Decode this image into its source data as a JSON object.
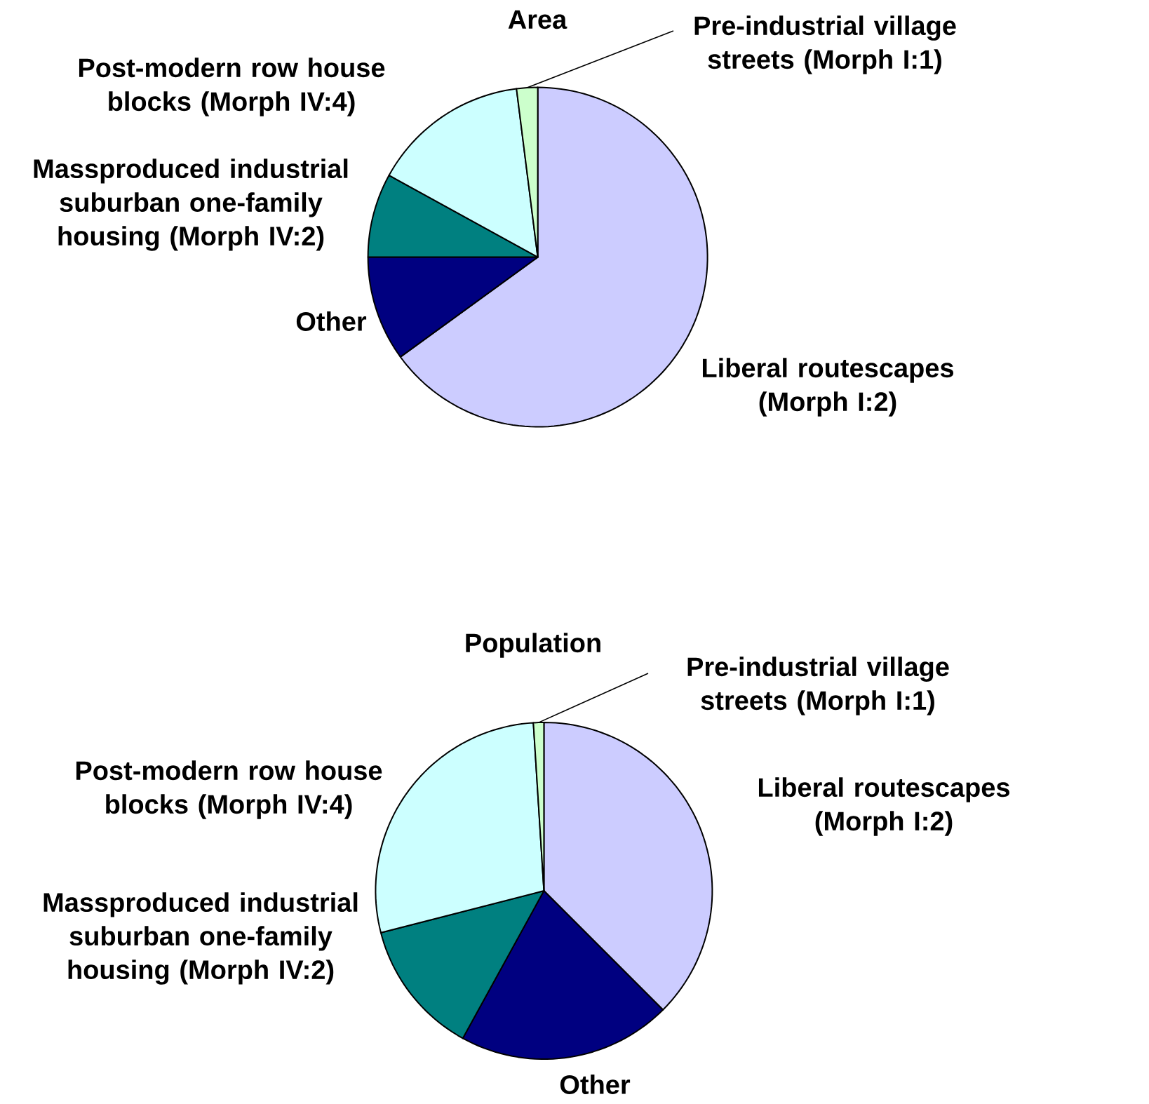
{
  "chart_data": [
    {
      "type": "pie",
      "title": "Area",
      "categories": [
        "Liberal routescapes (Morph I:2)",
        "Other",
        "Massproduced industrial suburban one-family housing (Morph IV:2)",
        "Post-modern row house blocks (Morph IV:4)",
        "Pre-industrial village streets (Morph I:1)"
      ],
      "values": [
        65,
        10,
        8,
        15,
        2
      ],
      "colors": [
        "#ccccff",
        "#000080",
        "#008080",
        "#ccffff",
        "#ccffcc"
      ]
    },
    {
      "type": "pie",
      "title": "Population",
      "categories": [
        "Liberal routescapes (Morph I:2)",
        "Other",
        "Massproduced industrial suburban one-family housing (Morph IV:2)",
        "Post-modern row house blocks (Morph IV:4)",
        "Pre-industrial village streets (Morph I:1)"
      ],
      "values": [
        37.5,
        20.5,
        13,
        28,
        1
      ],
      "colors": [
        "#ccccff",
        "#000080",
        "#008080",
        "#ccffff",
        "#ccffcc"
      ]
    }
  ]
}
